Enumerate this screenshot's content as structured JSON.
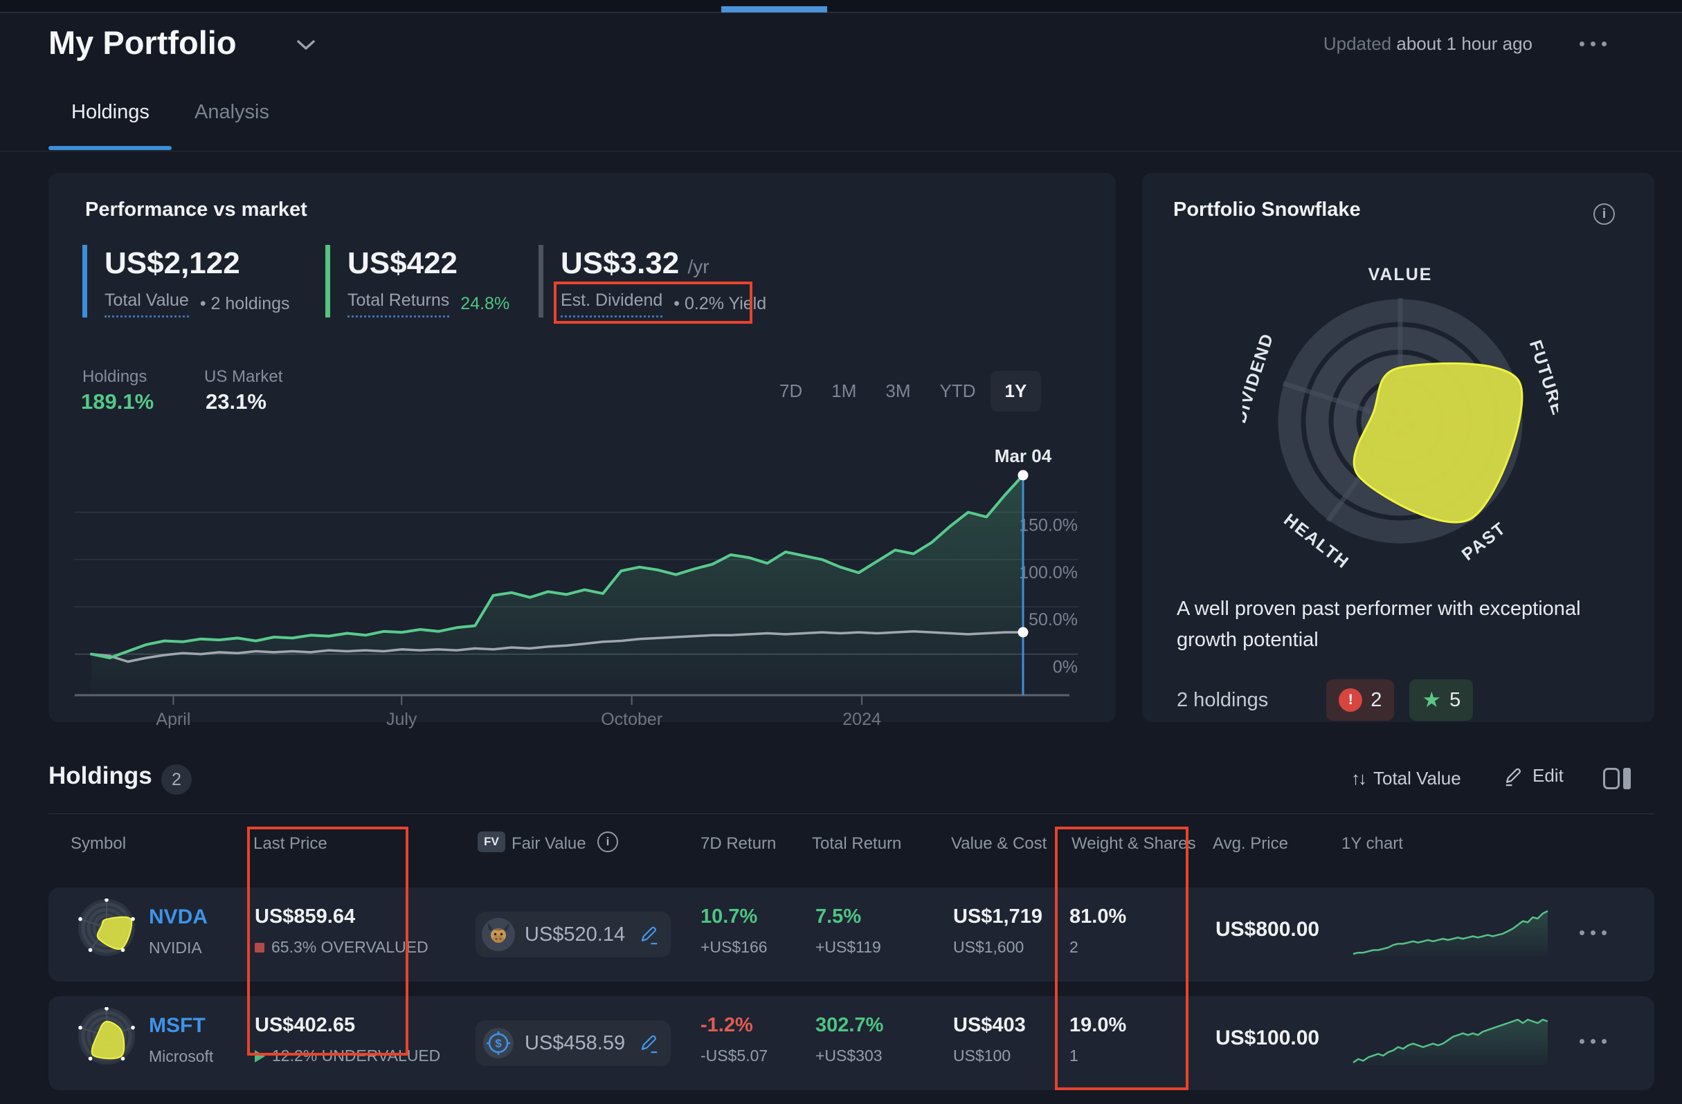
{
  "page": {
    "title": "My Portfolio",
    "updated_prefix": "Updated",
    "updated_time": "about 1 hour ago"
  },
  "tabs": {
    "holdings": "Holdings",
    "analysis": "Analysis"
  },
  "performance": {
    "title": "Performance vs market",
    "stats": [
      {
        "value": "US$2,122",
        "unit": "",
        "label": "Total Value",
        "extra": "• 2 holdings",
        "extra_class": ""
      },
      {
        "value": "US$422",
        "unit": "",
        "label": "Total Returns",
        "extra": "24.8%",
        "extra_class": "accent-green"
      },
      {
        "value": "US$3.32",
        "unit": "/yr",
        "label": "Est. Dividend",
        "extra": "• 0.2% Yield",
        "extra_class": ""
      }
    ],
    "legend": [
      {
        "label": "Holdings",
        "value": "189.1%"
      },
      {
        "label": "US Market",
        "value": "23.1%"
      }
    ],
    "ranges": [
      "7D",
      "1M",
      "3M",
      "YTD",
      "1Y"
    ],
    "active_range": "1Y"
  },
  "snowflake": {
    "title": "Portfolio Snowflake",
    "description": "A well proven past performer with exceptional growth potential",
    "holdings_label": "2 holdings",
    "warning_count": "2",
    "star_count": "5"
  },
  "holdings_section": {
    "title": "Holdings",
    "count": "2",
    "sort_label": "Total Value",
    "edit_label": "Edit"
  },
  "table": {
    "headers": {
      "symbol": "Symbol",
      "last_price": "Last Price",
      "fair_value_badge": "FV",
      "fair_value": "Fair Value",
      "seven_d": "7D Return",
      "total_return": "Total Return",
      "value_cost": "Value & Cost",
      "weight_shares": "Weight & Shares",
      "avg_price": "Avg. Price",
      "chart": "1Y chart"
    },
    "rows": [
      {
        "symbol": "NVDA",
        "name": "NVIDIA",
        "last_price": "US$859.64",
        "valuation": "65.3% OVERVALUED",
        "valuation_class": "val-over",
        "fair_value": "US$520.14",
        "seven_d": "10.7%",
        "seven_d_class": "pos",
        "seven_d_sub": "+US$166",
        "total_return": "7.5%",
        "total_return_class": "pos",
        "total_return_sub": "+US$119",
        "value": "US$1,719",
        "cost": "US$1,600",
        "weight": "81.0%",
        "shares": "2",
        "avg_price": "US$800.00",
        "snowflake_scores": [
          1.6,
          4.9,
          4.9,
          2.6,
          1.0
        ]
      },
      {
        "symbol": "MSFT",
        "name": "Microsoft",
        "last_price": "US$402.65",
        "valuation": "12.2% UNDERVALUED",
        "valuation_class": "val-under",
        "fair_value": "US$458.59",
        "seven_d": "-1.2%",
        "seven_d_class": "neg",
        "seven_d_sub": "-US$5.07",
        "total_return": "302.7%",
        "total_return_class": "pos",
        "total_return_sub": "+US$303",
        "value": "US$403",
        "cost": "US$100",
        "weight": "19.0%",
        "shares": "1",
        "avg_price": "US$100.00",
        "snowflake_scores": [
          2.8,
          3.0,
          4.7,
          4.4,
          1.7
        ]
      }
    ]
  },
  "chart_data": [
    {
      "type": "line",
      "title": "Performance vs market (1Y, total return %)",
      "series": [
        {
          "name": "Holdings",
          "color": "#58ca8d",
          "final_value": 189.1,
          "values": [
            0,
            -4,
            3,
            10,
            14,
            13,
            16,
            15,
            17,
            14,
            18,
            17,
            20,
            19,
            22,
            20,
            24,
            23,
            26,
            24,
            28,
            30,
            62,
            65,
            60,
            66,
            63,
            68,
            64,
            88,
            92,
            89,
            84,
            90,
            95,
            105,
            102,
            96,
            108,
            104,
            100,
            92,
            86,
            98,
            110,
            106,
            118,
            135,
            150,
            145,
            168,
            189.1
          ]
        },
        {
          "name": "US Market",
          "color": "#a0a6ae",
          "final_value": 23.1,
          "values": [
            0,
            -2,
            -8,
            -4,
            -1,
            1,
            0,
            2,
            1,
            3,
            2,
            3,
            2,
            4,
            3,
            4,
            3,
            5,
            4,
            5,
            4,
            6,
            5,
            7,
            6,
            8,
            9,
            11,
            13,
            14,
            16,
            17,
            18,
            19,
            20,
            20,
            21,
            22,
            21,
            22,
            23,
            22,
            23,
            22,
            23,
            24,
            23,
            22,
            21,
            22,
            23,
            23.1
          ]
        }
      ],
      "x_ticks": [
        {
          "pos": 0.088,
          "label": "April"
        },
        {
          "pos": 0.333,
          "label": "July"
        },
        {
          "pos": 0.58,
          "label": "October"
        },
        {
          "pos": 0.827,
          "label": "2024"
        }
      ],
      "y_ticks": [
        "0%",
        "50.0%",
        "100.0%",
        "150.0%"
      ],
      "y_tick_values": [
        0,
        50,
        100,
        150
      ],
      "y_range": [
        -20,
        205
      ],
      "grid": true,
      "cursor": {
        "date_label": "Mar 04",
        "holdings_value": 189.1,
        "market_value": 23.1
      }
    },
    {
      "type": "radar",
      "title": "Portfolio Snowflake",
      "axes": [
        "VALUE",
        "FUTURE",
        "PAST",
        "HEALTH",
        "DIVIDEND"
      ],
      "scores": [
        2.1,
        4.9,
        4.7,
        2.7,
        1.1
      ],
      "max": 5
    },
    {
      "type": "sparkline",
      "name": "NVDA 1Y chart",
      "values": [
        2,
        3,
        3,
        4,
        5,
        5,
        6,
        7,
        9,
        10,
        10,
        11,
        12,
        11,
        12,
        13,
        12,
        13,
        14,
        13,
        14,
        15,
        14,
        15,
        16,
        15,
        16,
        17,
        16,
        17,
        18,
        20,
        22,
        25,
        28,
        27,
        31,
        30,
        34,
        36
      ]
    },
    {
      "type": "sparkline",
      "name": "MSFT 1Y chart",
      "values": [
        2,
        4,
        3,
        5,
        6,
        7,
        6,
        8,
        9,
        11,
        10,
        12,
        13,
        12,
        11,
        12,
        13,
        12,
        13,
        15,
        17,
        18,
        19,
        18,
        19,
        18,
        20,
        21,
        22,
        23,
        24,
        25,
        26,
        27,
        25,
        27,
        26,
        25,
        27,
        26
      ]
    }
  ]
}
